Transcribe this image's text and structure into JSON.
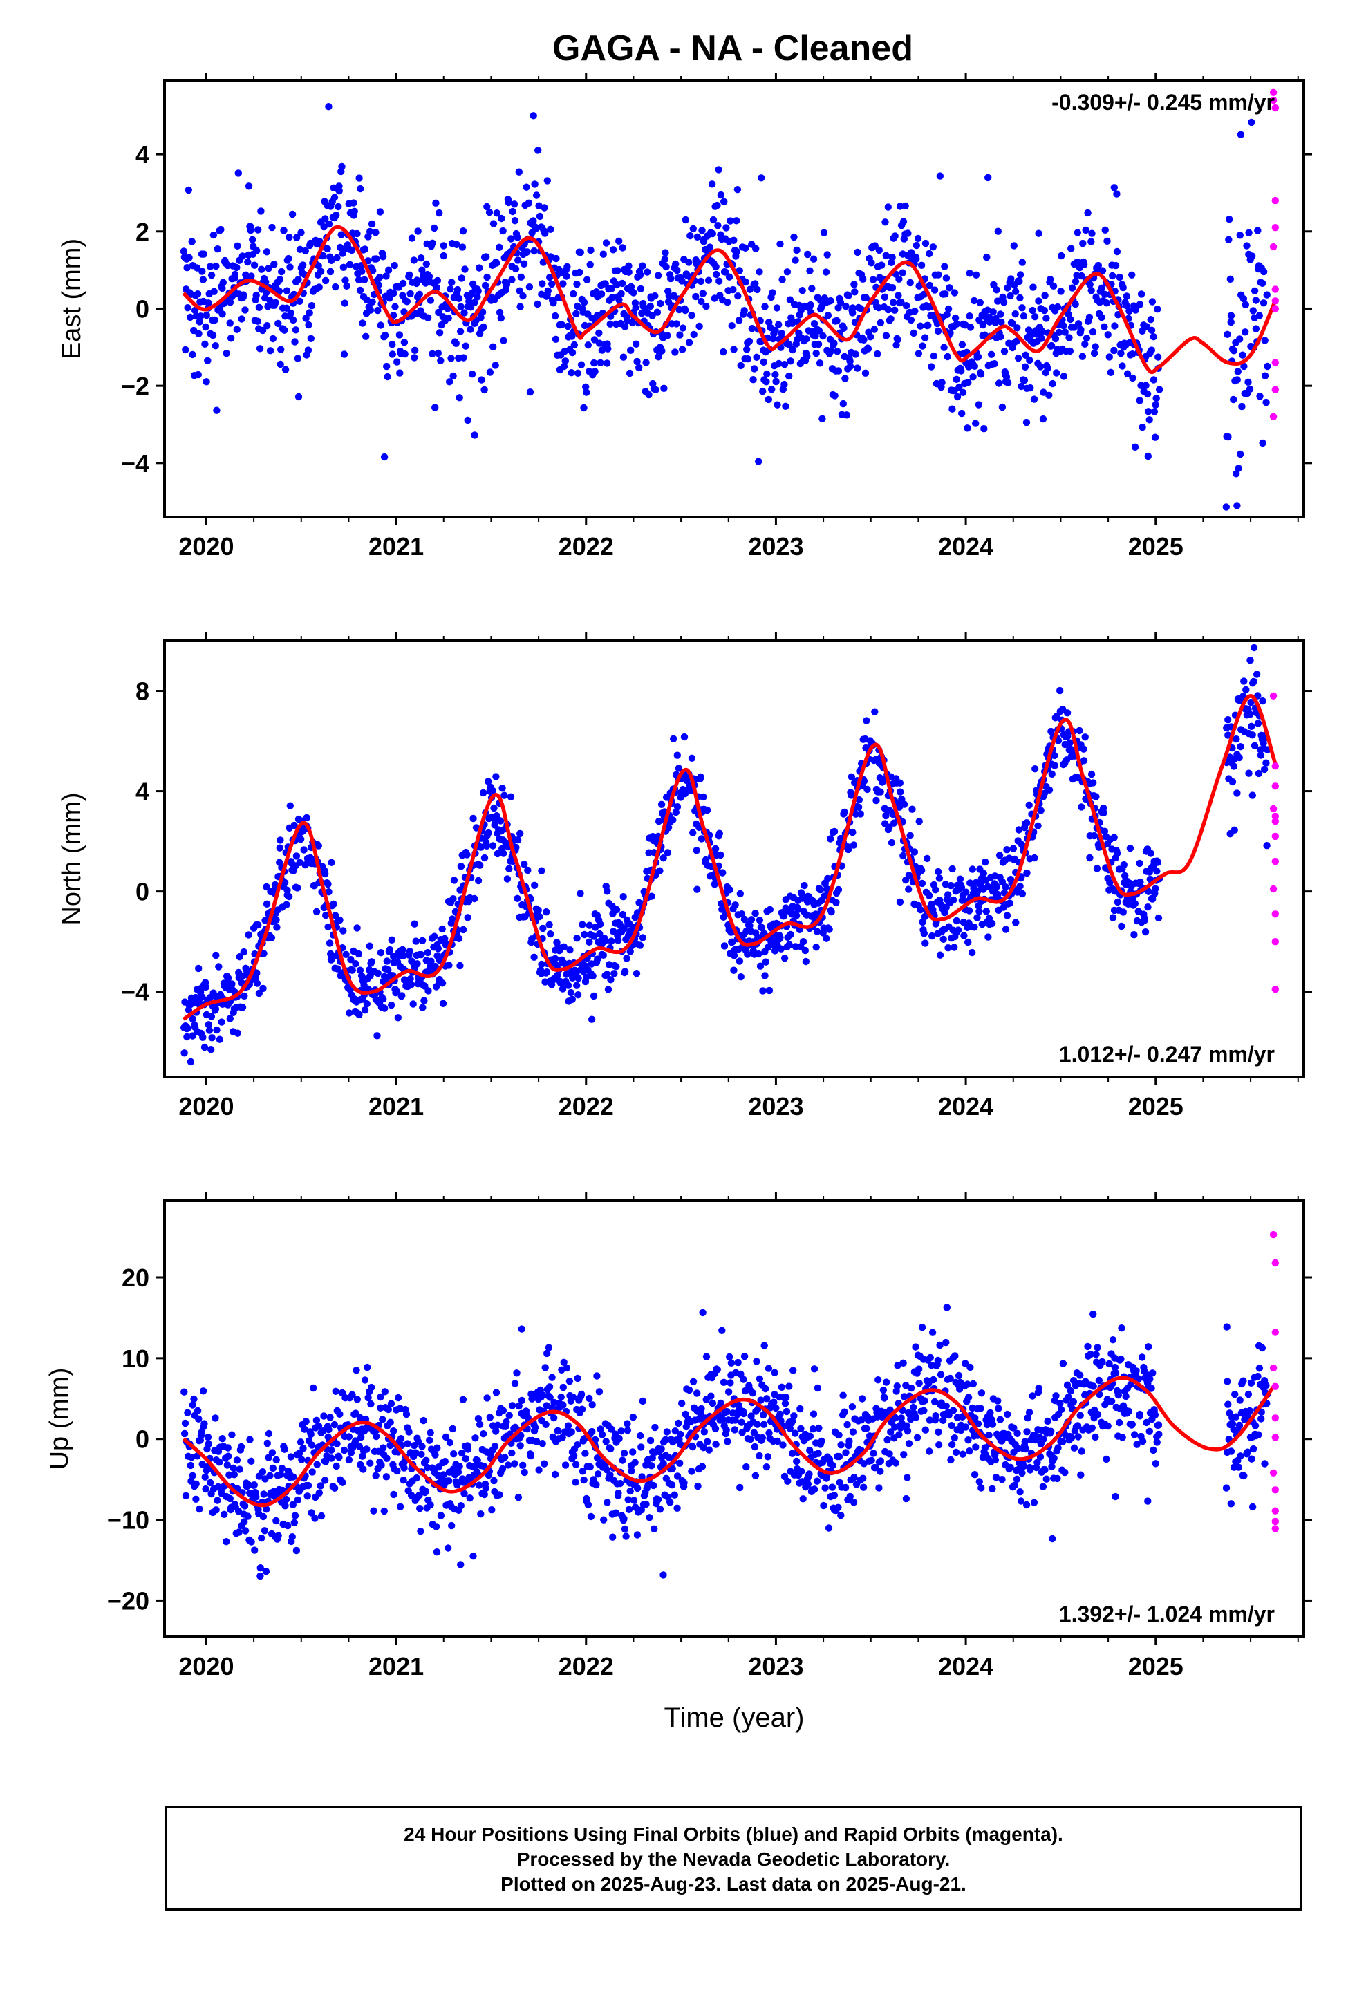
{
  "title": "GAGA  - NA - Cleaned",
  "footer": {
    "line1": "24 Hour Positions Using Final Orbits (blue) and Rapid Orbits (magenta).",
    "line2": "Processed by the Nevada Geodetic Laboratory.",
    "line3": "Plotted on 2025-Aug-23. Last data on 2025-Aug-21."
  },
  "colors": {
    "final": "#0000ff",
    "rapid": "#ff00ff",
    "model": "#ff0000",
    "axes": "#000000"
  },
  "chart_data": [
    {
      "type": "scatter",
      "xlabel": "",
      "ylabel": "East (mm)",
      "xlim": [
        2019.78,
        2025.78
      ],
      "ylim": [
        -5.4,
        5.9
      ],
      "xticks": [
        "2020",
        "2021",
        "2022",
        "2023",
        "2024",
        "2025"
      ],
      "yticks": [
        -4,
        -2,
        0,
        2,
        4
      ],
      "ytick_labels": [
        "−4",
        "−2",
        "0",
        "2",
        "4"
      ],
      "rate_label": "-0.309+/- 0.245 mm/yr",
      "rate_position": "top-right",
      "model_series": [
        {
          "x": 2019.88,
          "y": 0.4
        },
        {
          "x": 2019.97,
          "y": 0.0
        },
        {
          "x": 2020.05,
          "y": 0.1
        },
        {
          "x": 2020.2,
          "y": 0.7
        },
        {
          "x": 2020.3,
          "y": 0.6
        },
        {
          "x": 2020.45,
          "y": 0.2
        },
        {
          "x": 2020.55,
          "y": 1.0
        },
        {
          "x": 2020.68,
          "y": 2.1
        },
        {
          "x": 2020.8,
          "y": 1.5
        },
        {
          "x": 2020.95,
          "y": -0.1
        },
        {
          "x": 2021.02,
          "y": -0.3
        },
        {
          "x": 2021.18,
          "y": 0.4
        },
        {
          "x": 2021.25,
          "y": 0.3
        },
        {
          "x": 2021.38,
          "y": -0.3
        },
        {
          "x": 2021.5,
          "y": 0.5
        },
        {
          "x": 2021.68,
          "y": 1.8
        },
        {
          "x": 2021.8,
          "y": 1.2
        },
        {
          "x": 2021.95,
          "y": -0.6
        },
        {
          "x": 2022.0,
          "y": -0.6
        },
        {
          "x": 2022.18,
          "y": 0.1
        },
        {
          "x": 2022.25,
          "y": -0.2
        },
        {
          "x": 2022.38,
          "y": -0.6
        },
        {
          "x": 2022.5,
          "y": 0.3
        },
        {
          "x": 2022.68,
          "y": 1.5
        },
        {
          "x": 2022.8,
          "y": 0.8
        },
        {
          "x": 2022.95,
          "y": -0.9
        },
        {
          "x": 2023.02,
          "y": -0.9
        },
        {
          "x": 2023.18,
          "y": -0.2
        },
        {
          "x": 2023.25,
          "y": -0.3
        },
        {
          "x": 2023.38,
          "y": -0.8
        },
        {
          "x": 2023.5,
          "y": 0.2
        },
        {
          "x": 2023.68,
          "y": 1.2
        },
        {
          "x": 2023.8,
          "y": 0.4
        },
        {
          "x": 2023.95,
          "y": -1.2
        },
        {
          "x": 2024.02,
          "y": -1.2
        },
        {
          "x": 2024.18,
          "y": -0.5
        },
        {
          "x": 2024.25,
          "y": -0.6
        },
        {
          "x": 2024.38,
          "y": -1.1
        },
        {
          "x": 2024.5,
          "y": -0.2
        },
        {
          "x": 2024.68,
          "y": 0.9
        },
        {
          "x": 2024.8,
          "y": 0.1
        },
        {
          "x": 2024.95,
          "y": -1.5
        },
        {
          "x": 2025.02,
          "y": -1.5
        },
        {
          "x": 2025.18,
          "y": -0.8
        },
        {
          "x": 2025.25,
          "y": -0.9
        },
        {
          "x": 2025.38,
          "y": -1.4
        },
        {
          "x": 2025.5,
          "y": -1.2
        },
        {
          "x": 2025.63,
          "y": 0.2
        }
      ],
      "final_series": {
        "segments": [
          {
            "start": 2019.88,
            "end": 2025.02,
            "noise": 1.0,
            "outlier_count": 6
          },
          {
            "start": 2025.37,
            "end": 2025.59,
            "noise": 1.6,
            "outlier_count": 3
          }
        ],
        "count": 1550
      },
      "rapid_series": {
        "x": [
          2025.62,
          2025.62,
          2025.63,
          2025.63,
          2025.63,
          2025.62,
          2025.63,
          2025.63,
          2025.63,
          2025.63,
          2025.62,
          2025.63
        ],
        "y": [
          5.6,
          5.4,
          5.2,
          2.8,
          2.1,
          1.6,
          0.5,
          0.2,
          -1.4,
          -2.1,
          -2.8,
          0.0
        ]
      }
    },
    {
      "type": "scatter",
      "xlabel": "",
      "ylabel": "North (mm)",
      "xlim": [
        2019.78,
        2025.78
      ],
      "ylim": [
        -7.4,
        10.0
      ],
      "xticks": [
        "2020",
        "2021",
        "2022",
        "2023",
        "2024",
        "2025"
      ],
      "yticks": [
        -4,
        0,
        4,
        8
      ],
      "ytick_labels": [
        "−4",
        "0",
        "4",
        "8"
      ],
      "rate_label": "1.012+/- 0.247 mm/yr",
      "rate_position": "bottom-right",
      "model_series": [
        {
          "x": 2019.88,
          "y": -5.1
        },
        {
          "x": 2020.0,
          "y": -4.5
        },
        {
          "x": 2020.18,
          "y": -4.0
        },
        {
          "x": 2020.3,
          "y": -2.0
        },
        {
          "x": 2020.5,
          "y": 2.7
        },
        {
          "x": 2020.62,
          "y": 0.0
        },
        {
          "x": 2020.75,
          "y": -3.5
        },
        {
          "x": 2020.88,
          "y": -4.0
        },
        {
          "x": 2021.05,
          "y": -3.2
        },
        {
          "x": 2021.25,
          "y": -2.8
        },
        {
          "x": 2021.5,
          "y": 3.7
        },
        {
          "x": 2021.62,
          "y": 1.5
        },
        {
          "x": 2021.78,
          "y": -2.5
        },
        {
          "x": 2021.88,
          "y": -3.1
        },
        {
          "x": 2022.05,
          "y": -2.3
        },
        {
          "x": 2022.25,
          "y": -1.8
        },
        {
          "x": 2022.5,
          "y": 4.7
        },
        {
          "x": 2022.62,
          "y": 2.5
        },
        {
          "x": 2022.78,
          "y": -1.5
        },
        {
          "x": 2022.88,
          "y": -2.1
        },
        {
          "x": 2023.05,
          "y": -1.3
        },
        {
          "x": 2023.25,
          "y": -0.8
        },
        {
          "x": 2023.5,
          "y": 5.7
        },
        {
          "x": 2023.62,
          "y": 3.5
        },
        {
          "x": 2023.78,
          "y": -0.5
        },
        {
          "x": 2023.88,
          "y": -1.1
        },
        {
          "x": 2024.05,
          "y": -0.3
        },
        {
          "x": 2024.25,
          "y": 0.2
        },
        {
          "x": 2024.5,
          "y": 6.7
        },
        {
          "x": 2024.62,
          "y": 4.5
        },
        {
          "x": 2024.78,
          "y": 0.5
        },
        {
          "x": 2024.88,
          "y": -0.1
        },
        {
          "x": 2025.05,
          "y": 0.7
        },
        {
          "x": 2025.18,
          "y": 1.2
        },
        {
          "x": 2025.35,
          "y": 5.0
        },
        {
          "x": 2025.5,
          "y": 7.8
        },
        {
          "x": 2025.63,
          "y": 5.1
        }
      ],
      "final_series": {
        "segments": [
          {
            "start": 2019.88,
            "end": 2025.02,
            "noise": 0.8,
            "outlier_count": 5
          },
          {
            "start": 2025.37,
            "end": 2025.59,
            "noise": 1.1,
            "outlier_count": 2
          }
        ],
        "count": 1550
      },
      "rapid_series": {
        "x": [
          2025.62,
          2025.63,
          2025.63,
          2025.62,
          2025.63,
          2025.63,
          2025.63,
          2025.62,
          2025.63,
          2025.63,
          2025.63,
          2025.63
        ],
        "y": [
          7.8,
          5.0,
          4.2,
          3.3,
          2.8,
          2.2,
          1.2,
          0.1,
          -0.9,
          -2.0,
          -3.9,
          3.0
        ]
      }
    },
    {
      "type": "scatter",
      "xlabel": "Time (year)",
      "ylabel": "Up (mm)",
      "xlim": [
        2019.78,
        2025.78
      ],
      "ylim": [
        -24.5,
        29.5
      ],
      "xticks": [
        "2020",
        "2021",
        "2022",
        "2023",
        "2024",
        "2025"
      ],
      "yticks": [
        -20,
        -10,
        0,
        10,
        20
      ],
      "ytick_labels": [
        "−20",
        "−10",
        "0",
        "10",
        "20"
      ],
      "rate_label": "1.392+/- 1.024 mm/yr",
      "rate_position": "bottom-right",
      "model_series": [
        {
          "x": 2019.88,
          "y": 0.0
        },
        {
          "x": 2020.0,
          "y": -2.5
        },
        {
          "x": 2020.15,
          "y": -6.5
        },
        {
          "x": 2020.3,
          "y": -8.2
        },
        {
          "x": 2020.45,
          "y": -6.0
        },
        {
          "x": 2020.6,
          "y": -1.5
        },
        {
          "x": 2020.8,
          "y": 2.0
        },
        {
          "x": 2020.95,
          "y": 0.5
        },
        {
          "x": 2021.1,
          "y": -3.5
        },
        {
          "x": 2021.28,
          "y": -6.5
        },
        {
          "x": 2021.45,
          "y": -4.5
        },
        {
          "x": 2021.6,
          "y": 0.0
        },
        {
          "x": 2021.8,
          "y": 3.3
        },
        {
          "x": 2021.95,
          "y": 2.0
        },
        {
          "x": 2022.1,
          "y": -2.5
        },
        {
          "x": 2022.28,
          "y": -5.2
        },
        {
          "x": 2022.45,
          "y": -3.0
        },
        {
          "x": 2022.6,
          "y": 1.5
        },
        {
          "x": 2022.8,
          "y": 4.8
        },
        {
          "x": 2022.95,
          "y": 3.5
        },
        {
          "x": 2023.1,
          "y": -1.0
        },
        {
          "x": 2023.28,
          "y": -4.2
        },
        {
          "x": 2023.45,
          "y": -2.0
        },
        {
          "x": 2023.6,
          "y": 2.8
        },
        {
          "x": 2023.8,
          "y": 6.0
        },
        {
          "x": 2023.95,
          "y": 4.5
        },
        {
          "x": 2024.1,
          "y": 0.0
        },
        {
          "x": 2024.28,
          "y": -2.5
        },
        {
          "x": 2024.45,
          "y": -0.5
        },
        {
          "x": 2024.6,
          "y": 4.0
        },
        {
          "x": 2024.8,
          "y": 7.5
        },
        {
          "x": 2024.95,
          "y": 6.0
        },
        {
          "x": 2025.1,
          "y": 1.5
        },
        {
          "x": 2025.28,
          "y": -1.2
        },
        {
          "x": 2025.42,
          "y": 0.0
        },
        {
          "x": 2025.63,
          "y": 6.8
        }
      ],
      "final_series": {
        "segments": [
          {
            "start": 2019.88,
            "end": 2025.02,
            "noise": 3.6,
            "outlier_count": 8
          },
          {
            "start": 2025.37,
            "end": 2025.59,
            "noise": 3.8,
            "outlier_count": 2
          }
        ],
        "count": 1550
      },
      "rapid_series": {
        "x": [
          2025.62,
          2025.63,
          2025.63,
          2025.62,
          2025.63,
          2025.63,
          2025.63,
          2025.62,
          2025.63,
          2025.63,
          2025.63,
          2025.63
        ],
        "y": [
          25.3,
          21.8,
          13.2,
          8.8,
          6.5,
          2.6,
          0.2,
          -4.2,
          -6.3,
          -8.9,
          -10.2,
          -11.1
        ]
      }
    }
  ]
}
